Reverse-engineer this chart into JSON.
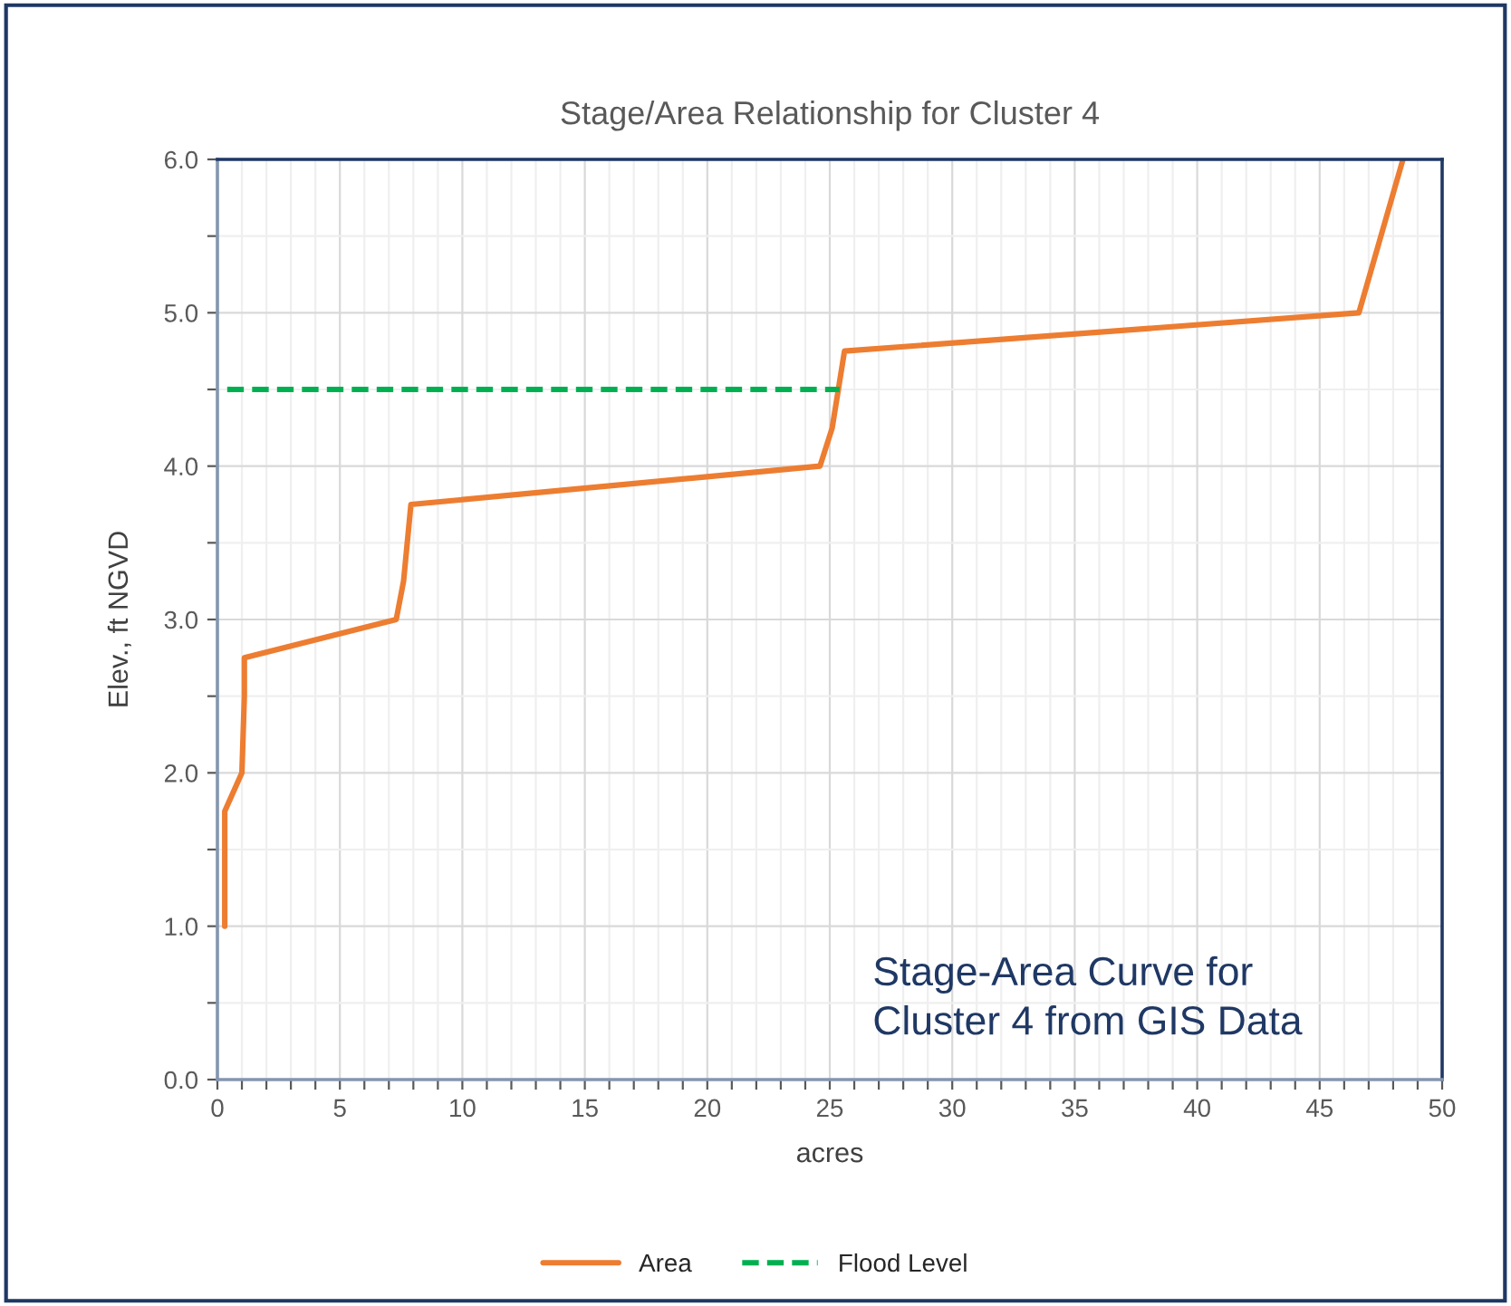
{
  "chart_data": {
    "type": "line",
    "title": "Stage/Area Relationship for Cluster 4",
    "xlabel": "acres",
    "ylabel": "Elev., ft NGVD",
    "series": [
      {
        "name": "Area",
        "color": "#ed7d31",
        "line_style": "solid",
        "x": [
          0.3,
          0.3,
          1.0,
          1.1,
          1.1,
          7.3,
          7.6,
          7.9,
          24.6,
          25.1,
          25.6,
          46.6,
          48.4
        ],
        "values": [
          1.0,
          1.75,
          2.0,
          2.5,
          2.75,
          3.0,
          3.25,
          3.75,
          4.0,
          4.25,
          4.75,
          5.0,
          6.0
        ]
      },
      {
        "name": "Flood Level",
        "color": "#00b050",
        "line_style": "dashed",
        "x": [
          0.4,
          25.4
        ],
        "values": [
          4.5,
          4.5
        ]
      }
    ],
    "xlim": [
      0,
      50
    ],
    "ylim": [
      0,
      6
    ],
    "xticks": [
      0,
      {
        "value": 1,
        "label": null
      },
      {
        "value": 2,
        "label": null
      },
      {
        "value": 3,
        "label": null
      },
      {
        "value": 4,
        "label": null
      },
      5,
      {
        "value": 6,
        "label": null
      },
      {
        "value": 7,
        "label": null
      },
      {
        "value": 8,
        "label": null
      },
      {
        "value": 9,
        "label": null
      },
      10,
      {
        "value": 11,
        "label": null
      },
      {
        "value": 12,
        "label": null
      },
      {
        "value": 13,
        "label": null
      },
      {
        "value": 14,
        "label": null
      },
      15,
      {
        "value": 16,
        "label": null
      },
      {
        "value": 17,
        "label": null
      },
      {
        "value": 18,
        "label": null
      },
      {
        "value": 19,
        "label": null
      },
      20,
      {
        "value": 21,
        "label": null
      },
      {
        "value": 22,
        "label": null
      },
      {
        "value": 23,
        "label": null
      },
      {
        "value": 24,
        "label": null
      },
      25,
      {
        "value": 26,
        "label": null
      },
      {
        "value": 27,
        "label": null
      },
      {
        "value": 28,
        "label": null
      },
      {
        "value": 29,
        "label": null
      },
      30,
      {
        "value": 31,
        "label": null
      },
      {
        "value": 32,
        "label": null
      },
      {
        "value": 33,
        "label": null
      },
      {
        "value": 34,
        "label": null
      },
      35,
      {
        "value": 36,
        "label": null
      },
      {
        "value": 37,
        "label": null
      },
      {
        "value": 38,
        "label": null
      },
      {
        "value": 39,
        "label": null
      },
      40,
      {
        "value": 41,
        "label": null
      },
      {
        "value": 42,
        "label": null
      },
      {
        "value": 43,
        "label": null
      },
      {
        "value": 44,
        "label": null
      },
      45,
      {
        "value": 46,
        "label": null
      },
      {
        "value": 47,
        "label": null
      },
      {
        "value": 48,
        "label": null
      },
      {
        "value": 49,
        "label": null
      },
      50
    ],
    "yticks": [
      {
        "value": 0,
        "label": "0.0"
      },
      {
        "value": 0.5,
        "label": null
      },
      {
        "value": 1,
        "label": "1.0"
      },
      {
        "value": 1.5,
        "label": null
      },
      {
        "value": 2,
        "label": "2.0"
      },
      {
        "value": 2.5,
        "label": null
      },
      {
        "value": 3,
        "label": "3.0"
      },
      {
        "value": 3.5,
        "label": null
      },
      {
        "value": 4,
        "label": "4.0"
      },
      {
        "value": 4.5,
        "label": null
      },
      {
        "value": 5,
        "label": "5.0"
      },
      {
        "value": 5.5,
        "label": null
      },
      {
        "value": 6,
        "label": "6.0"
      }
    ],
    "grid": true,
    "legend": "bottom",
    "annotations": [
      "Stage-Area Curve for\nCluster 4 from GIS Data"
    ]
  }
}
